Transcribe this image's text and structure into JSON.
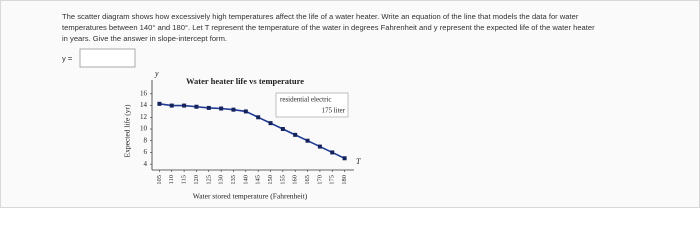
{
  "question": {
    "lines": [
      "The scatter diagram shows how excessively high temperatures affect the life of a water heater. Write an equation of the line that models the data for water",
      "temperatures between 140° and 180°. Let T represent the temperature of the water in degrees Fahrenheit and y represent the expected life of the water heater",
      "in years. Give the answer in slope-intercept form."
    ],
    "answer_label": "y ="
  },
  "chart_data": {
    "type": "line",
    "title": "Water heater life vs temperature",
    "x_label": "Water stored temperature (Fahrenheit)",
    "y_label": "Expected life (yr)",
    "x_axis_symbol": "T",
    "y_axis_symbol": "y",
    "annotations": [
      "residential electric",
      "175 liter"
    ],
    "x": [
      105,
      110,
      115,
      120,
      125,
      130,
      135,
      140,
      145,
      150,
      155,
      160,
      165,
      170,
      175,
      180
    ],
    "series": [
      {
        "name": "residential electric",
        "color": "#1f3a93",
        "values": [
          14.3,
          14,
          14,
          13.8,
          13.6,
          13.5,
          13.3,
          13,
          12,
          11,
          10,
          9,
          8,
          7,
          6,
          5
        ]
      }
    ],
    "xlim": [
      102,
      183
    ],
    "ylim": [
      3,
      17
    ],
    "xticks": [
      105,
      110,
      115,
      120,
      125,
      130,
      135,
      140,
      145,
      150,
      155,
      160,
      165,
      170,
      175,
      180
    ],
    "yticks": [
      4,
      6,
      8,
      10,
      12,
      14,
      16
    ],
    "grid": false
  }
}
